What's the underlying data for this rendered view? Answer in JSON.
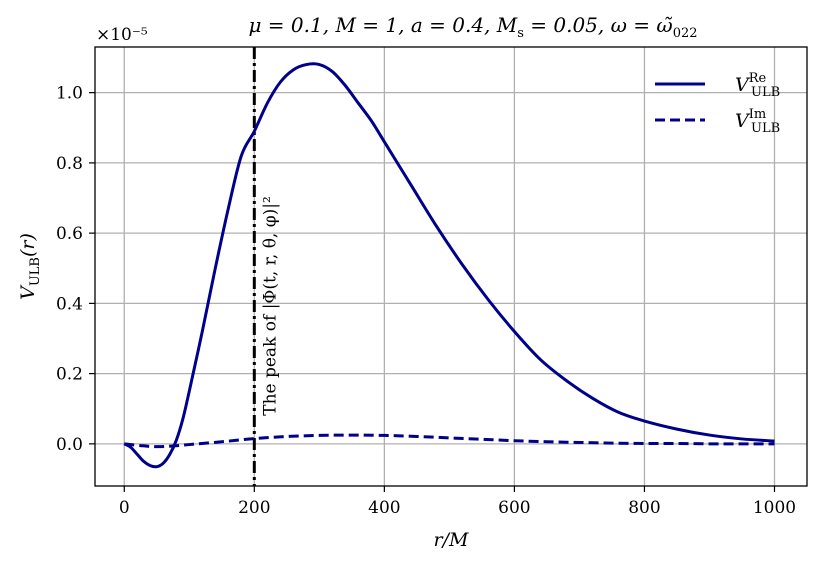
{
  "chart_data": {
    "type": "line",
    "title": "μ = 0.1, M = 1, a = 0.4, M_s = 0.05, ω = ω̃_022",
    "xlabel": "r/M",
    "ylabel": "V_ULB(r)",
    "y_multiplier_label": "×10⁻⁵",
    "xlim": [
      -45,
      1050
    ],
    "ylim": [
      -0.12,
      1.13
    ],
    "xticks": [
      0,
      200,
      400,
      600,
      800,
      1000
    ],
    "xtick_labels": [
      "0",
      "200",
      "400",
      "600",
      "800",
      "1000"
    ],
    "yticks": [
      0.0,
      0.2,
      0.4,
      0.6,
      0.8,
      1.0
    ],
    "ytick_labels": [
      "0.0",
      "0.2",
      "0.4",
      "0.6",
      "0.8",
      "1.0"
    ],
    "grid": true,
    "legend_position": "top-right",
    "series": [
      {
        "name": "V_ULB^Re",
        "style": "solid",
        "color": "#00008b",
        "x": [
          0,
          10,
          20,
          30,
          40,
          50,
          60,
          70,
          80,
          90,
          100,
          120,
          140,
          160,
          180,
          200,
          220,
          240,
          260,
          280,
          300,
          320,
          340,
          360,
          380,
          400,
          440,
          480,
          520,
          560,
          600,
          640,
          680,
          720,
          760,
          800,
          850,
          900,
          950,
          1000
        ],
        "y": [
          0.0,
          -0.01,
          -0.03,
          -0.05,
          -0.062,
          -0.065,
          -0.055,
          -0.03,
          0.01,
          0.07,
          0.15,
          0.32,
          0.5,
          0.67,
          0.82,
          0.89,
          0.97,
          1.03,
          1.065,
          1.08,
          1.08,
          1.06,
          1.02,
          0.97,
          0.92,
          0.86,
          0.74,
          0.62,
          0.51,
          0.41,
          0.32,
          0.24,
          0.18,
          0.13,
          0.09,
          0.065,
          0.042,
          0.025,
          0.014,
          0.008
        ]
      },
      {
        "name": "V_ULB^Im",
        "style": "dashed",
        "color": "#00008b",
        "x": [
          0,
          25,
          50,
          75,
          100,
          150,
          200,
          250,
          300,
          350,
          400,
          450,
          500,
          550,
          600,
          650,
          700,
          750,
          800,
          850,
          900,
          950,
          1000
        ],
        "y": [
          0.0,
          -0.005,
          -0.008,
          -0.006,
          -0.002,
          0.006,
          0.015,
          0.021,
          0.024,
          0.025,
          0.024,
          0.021,
          0.017,
          0.013,
          0.009,
          0.006,
          0.004,
          0.002,
          0.001,
          0.001,
          0.0,
          0.0,
          0.0
        ]
      }
    ],
    "annotations": [
      {
        "text": "The peak of |Φ(t, r, θ, φ)|²",
        "x": 200,
        "style": "dash-dot vertical line"
      }
    ]
  }
}
